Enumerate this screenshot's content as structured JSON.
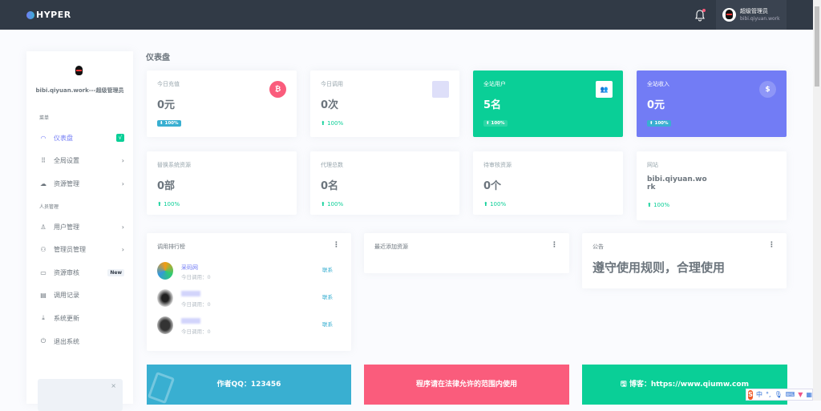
{
  "topbar": {
    "logo": "HYPER",
    "user_name": "超级管理员",
    "user_site": "bibi.qiyuan.work"
  },
  "sidebar": {
    "username": "bibi.qiyuan.work---超级管理员",
    "section1": "菜单",
    "section2": "人员管理",
    "items": [
      {
        "label": "仪表盘",
        "icon": "dashboard-icon",
        "glyph": "◠",
        "badge": "√",
        "active": true
      },
      {
        "label": "全局设置",
        "icon": "grid-icon",
        "glyph": "⠿",
        "chevron": "›"
      },
      {
        "label": "资源管理",
        "icon": "cloud-icon",
        "glyph": "☁",
        "chevron": "›"
      },
      {
        "label": "用户管理",
        "icon": "user-icon",
        "glyph": "♙",
        "chevron": "›"
      },
      {
        "label": "管理员管理",
        "icon": "users-icon",
        "glyph": "⚇",
        "chevron": "›"
      },
      {
        "label": "资源审核",
        "icon": "monitor-icon",
        "glyph": "▭",
        "badge": "New"
      },
      {
        "label": "调用记录",
        "icon": "record-icon",
        "glyph": "▤"
      },
      {
        "label": "系统更新",
        "icon": "download-icon",
        "glyph": "⤓"
      },
      {
        "label": "退出系统",
        "icon": "power-icon",
        "glyph": "⏻"
      }
    ],
    "promo_close": "×"
  },
  "page_title": "仪表盘",
  "stats": [
    {
      "label": "今日充值",
      "value": "0元",
      "change": "⬇ 100%",
      "icon": "bitcoin-icon",
      "icon_glyph": "₿"
    },
    {
      "label": "今日调用",
      "value": "0次",
      "change": "⬆ 100%",
      "icon": "placeholder-icon"
    },
    {
      "label": "全站用户",
      "value": "5名",
      "change": "⬆ 100%",
      "icon": "users-icon",
      "icon_glyph": "👥"
    },
    {
      "label": "全站收入",
      "value": "0元",
      "change": "⬆ 100%",
      "icon": "dollar-icon",
      "icon_glyph": "$"
    },
    {
      "label": "替换系统资源",
      "value": "0部",
      "change": "⬆ 100%"
    },
    {
      "label": "代理总数",
      "value": "0名",
      "change": "⬆ 100%"
    },
    {
      "label": "待审核资源",
      "value": "0个",
      "change": "⬆ 100%"
    },
    {
      "label": "网站",
      "value": "bibi.qiyuan.work",
      "change": "⬆ 100%"
    }
  ],
  "ranking": {
    "title": "调用排行榜",
    "more": "⋮",
    "rows": [
      {
        "name": "采码网",
        "count": "今日调用：0",
        "action": "联系"
      },
      {
        "name": "",
        "count": "今日调用：0",
        "action": "联系"
      },
      {
        "name": "",
        "count": "今日调用：0",
        "action": "联系"
      }
    ]
  },
  "recent": {
    "title": "最近添加资源",
    "more": "⋮"
  },
  "notice": {
    "title": "公告",
    "more": "⋮",
    "text": "遵守使用规则，合理使用"
  },
  "banners": [
    {
      "text": "作者QQ：123456",
      "color": "#39afd1"
    },
    {
      "text": "程序请在法律允许的范围内使用",
      "color": "#fa5c7c"
    },
    {
      "text": "🖫 博客：https://www.qiumw.com",
      "color": "#0acf97"
    }
  ],
  "ime": {
    "logo": "S",
    "lang": "中",
    "punct": "°,"
  },
  "colors": {
    "topbar": "#313a46",
    "primary": "#727cf5",
    "success": "#0acf97",
    "info": "#39afd1",
    "danger": "#fa5c7c"
  }
}
